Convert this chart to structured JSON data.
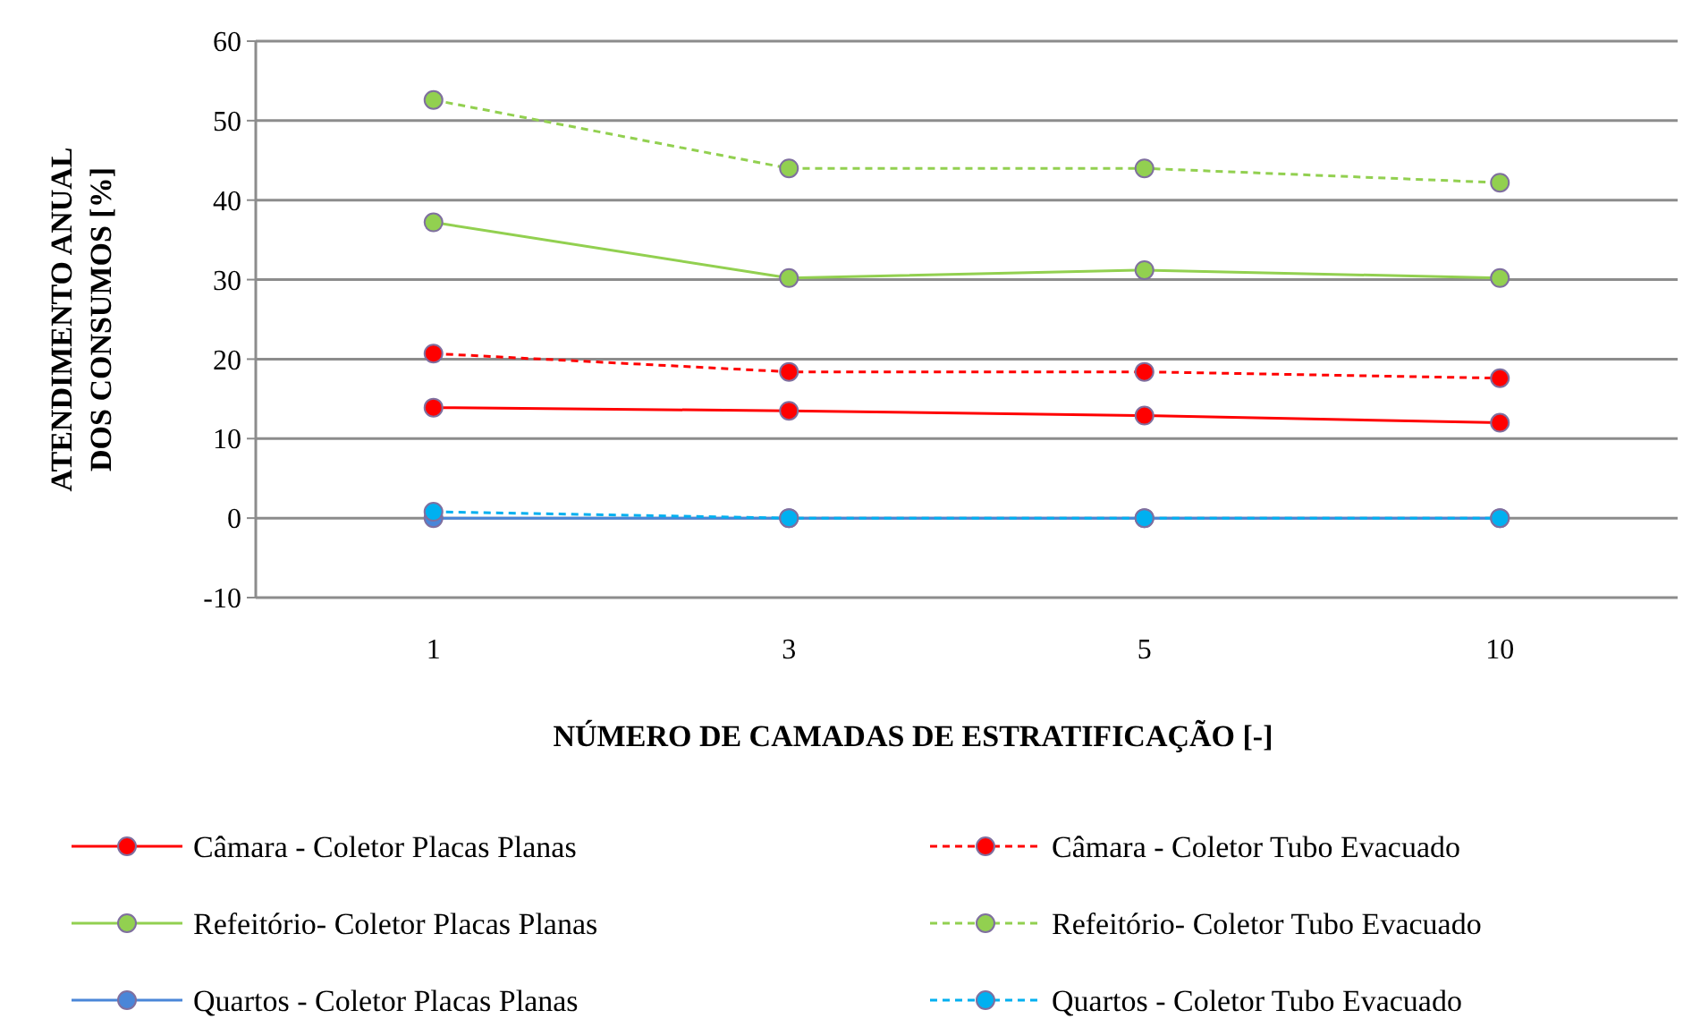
{
  "chart_data": {
    "type": "line",
    "xlabel": "NÚMERO DE CAMADAS DE ESTRATIFICAÇÃO [-]",
    "ylabel": "ATENDIMENTO ANUAL\nDOS CONSUMOS [%]",
    "categories": [
      "1",
      "3",
      "5",
      "10"
    ],
    "ylim": [
      -10,
      60
    ],
    "yticks": [
      -10,
      0,
      10,
      20,
      30,
      40,
      50,
      60
    ],
    "grid": "y",
    "legend": "bottom",
    "marker": "circle",
    "series": [
      {
        "name": "Câmara - Coletor Placas Planas",
        "color": "#ff0000",
        "line_style": "solid",
        "values": [
          13.9,
          13.5,
          12.9,
          12.0
        ]
      },
      {
        "name": "Câmara - Coletor Tubo Evacuado",
        "color": "#ff0000",
        "line_style": "dashed",
        "values": [
          20.7,
          18.4,
          18.4,
          17.6
        ]
      },
      {
        "name": "Refeitório- Coletor Placas Planas",
        "color": "#92d050",
        "line_style": "solid",
        "values": [
          37.2,
          30.2,
          31.2,
          30.2
        ]
      },
      {
        "name": "Refeitório- Coletor Tubo Evacuado",
        "color": "#92d050",
        "line_style": "dashed",
        "values": [
          52.6,
          44.0,
          44.0,
          42.2
        ]
      },
      {
        "name": "Quartos - Coletor Placas Planas",
        "color": "#4a86d8",
        "line_style": "solid",
        "values": [
          0,
          0,
          0,
          0
        ]
      },
      {
        "name": "Quartos - Coletor Tubo Evacuado",
        "color": "#00b0f0",
        "line_style": "dashed",
        "values": [
          0.8,
          0,
          0,
          0
        ]
      }
    ]
  }
}
